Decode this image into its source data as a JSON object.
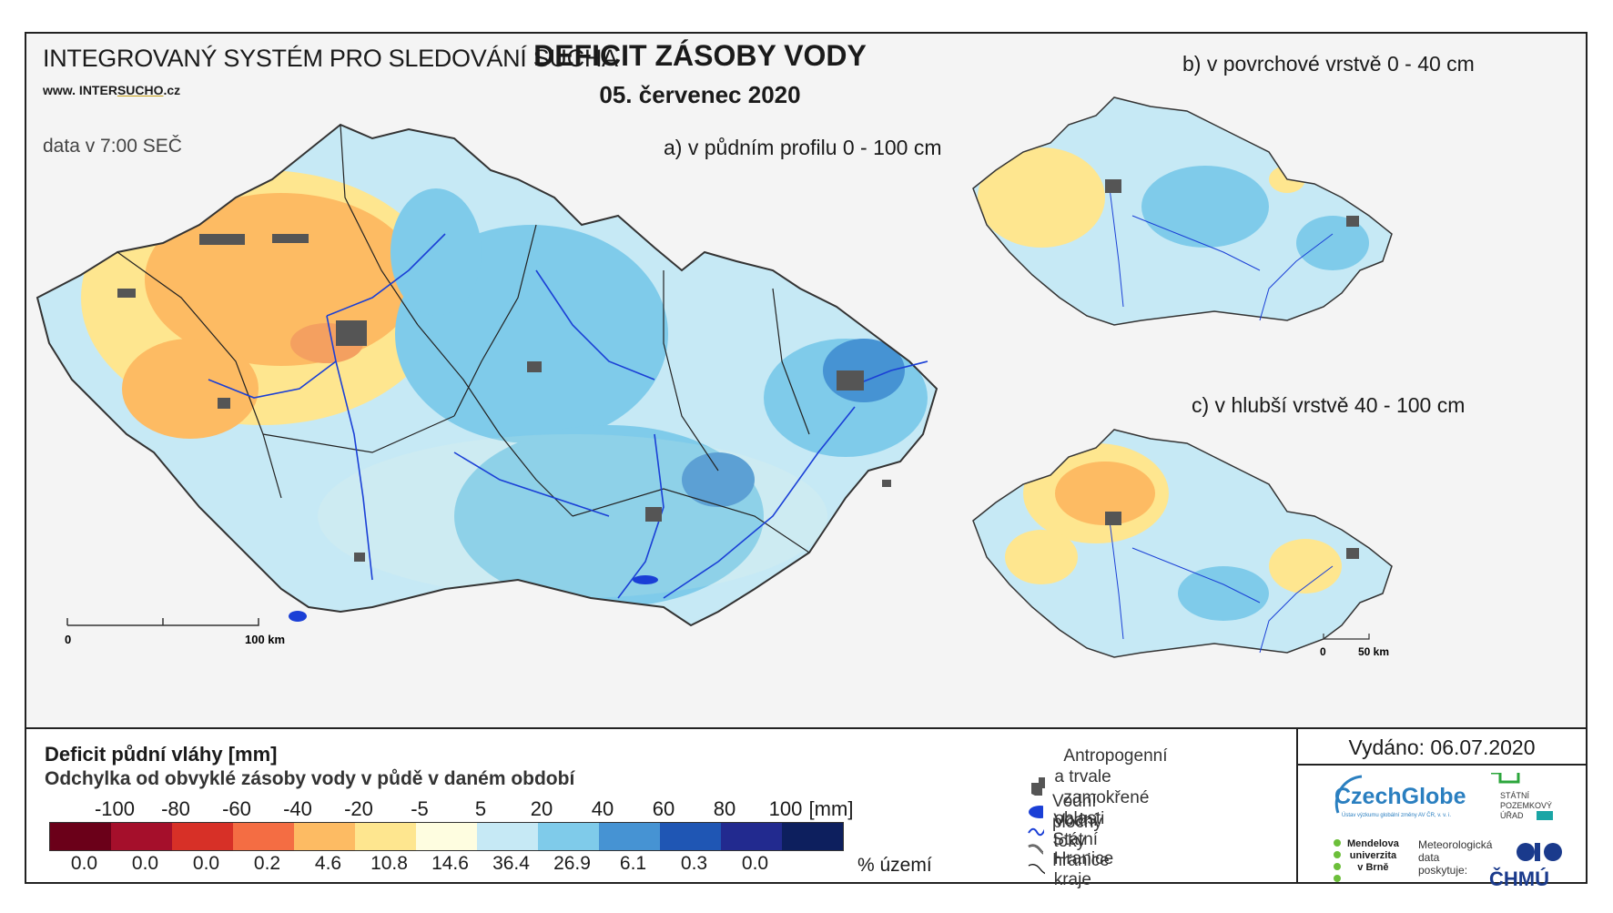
{
  "header": {
    "system_title": "INTEGROVANÝ SYSTÉM PRO SLEDOVÁNÍ SUCHA",
    "url_prefix": "www. INTER",
    "url_highlight": "SUCHO",
    "url_suffix": ".cz",
    "data_time": "data v 7:00 SEČ",
    "main_title": "DEFICIT ZÁSOBY VODY",
    "date": "05. červenec 2020"
  },
  "maps": {
    "a_label": "a) v půdním profilu 0 - 100 cm",
    "b_label": "b) v povrchové vrstvě 0 - 40 cm",
    "c_label": "c) v hlubší vrstvě 40 - 100 cm",
    "scale_main_start": "0",
    "scale_main_end": "100 km",
    "scale_small_start": "0",
    "scale_small_end": "50 km"
  },
  "legend": {
    "title": "Deficit půdní vláhy  [mm]",
    "subtitle": "Odchylka od obvyklé zásoby vody v půdě v daném období",
    "ticks": [
      "-100",
      "-80",
      "-60",
      "-40",
      "-20",
      "-5",
      "5",
      "20",
      "40",
      "60",
      "80",
      "100",
      "[mm]"
    ],
    "colors": [
      "#6b0019",
      "#a50f2b",
      "#d73027",
      "#f46d43",
      "#fdbb63",
      "#fee68f",
      "#fefde0",
      "#c6e9f5",
      "#7fcbea",
      "#4693d3",
      "#1f56b4",
      "#222a8f",
      "#0d1f5e"
    ],
    "percentages": [
      "0.0",
      "0.0",
      "0.0",
      "0.2",
      "4.6",
      "10.8",
      "14.6",
      "36.4",
      "26.9",
      "6.1",
      "0.3",
      "0.0"
    ],
    "percent_unit": "% území"
  },
  "key": {
    "anthropogenic_line1": "Antropogenní a trvale",
    "anthropogenic_line2": "zamokřené oblasti",
    "water_bodies": "Vodní plochy",
    "rivers": "Vodní toky",
    "state_border": "Státní hranice",
    "region_border": "Hranice kraje"
  },
  "footer": {
    "issued": "Vydáno: 06.07.2020",
    "czechglobe": "CzechGlobe",
    "czechglobe_sub": "Ústav výzkumu globální změny AV ČR, v. v. i.",
    "spu_line1": "STÁTNÍ",
    "spu_line2": "POZEMKOVÝ",
    "spu_line3": "ÚŘAD",
    "mendel_line1": "Mendelova",
    "mendel_line2": "univerzita",
    "mendel_line3": "v Brně",
    "meteo_line1": "Meteorologická",
    "meteo_line2": "data",
    "meteo_line3": "poskytuje:",
    "chmu": "ČHMÚ"
  }
}
